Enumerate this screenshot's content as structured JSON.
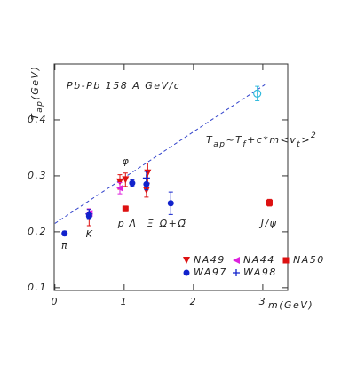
{
  "chart_data": {
    "type": "scatter",
    "title": "Pb-Pb 158 A GeV/c",
    "x_label": "m(GeV)",
    "y_label": [
      {
        "base": "T"
      },
      {
        "sub": "ap"
      },
      {
        "base": "(GeV)"
      }
    ],
    "formula": [
      {
        "base": "T"
      },
      {
        "sub": "ap"
      },
      {
        "base": "~T"
      },
      {
        "sub": "f"
      },
      {
        "base": "+c*m<v"
      },
      {
        "sub": "t"
      },
      {
        "base": ">"
      },
      {
        "sup": "2"
      }
    ],
    "particle_labels": [
      "π",
      "K",
      "p",
      "Λ",
      "Ξ",
      "Ω+Ω̄",
      "J/ψ",
      "φ"
    ],
    "xlim": [
      -0.01,
      3.36
    ],
    "ylim": [
      0.095,
      0.5
    ],
    "xticks": [
      0,
      1,
      2,
      3
    ],
    "yticks": [
      0.1,
      0.2,
      0.3,
      0.4
    ],
    "legend": "lower right",
    "fit": {
      "x": [
        0,
        3.03
      ],
      "y": [
        0.215,
        0.463
      ],
      "color": "#3344cc",
      "dashed": true
    },
    "series": [
      {
        "name": "NA49",
        "color": "#dd1111",
        "marker": "triangle-down",
        "x": [
          0.494,
          0.938,
          1.019,
          1.321,
          1.34
        ],
        "values": [
          0.226,
          0.289,
          0.293,
          0.274,
          0.305
        ],
        "errors": [
          0.015,
          0.013,
          0.012,
          0.012,
          0.018
        ]
      },
      {
        "name": "NA44",
        "color": "#dd22dd",
        "marker": "triangle-left",
        "x": [
          0.494,
          0.938
        ],
        "values": [
          0.233,
          0.278
        ],
        "errors": [
          0.008,
          0.01
        ]
      },
      {
        "name": "NA50",
        "color": "#dd1111",
        "marker": "square",
        "x": [
          1.019,
          3.097
        ],
        "values": [
          0.241,
          0.252
        ],
        "errors": [
          0.005,
          0.006
        ]
      },
      {
        "name": "WA97",
        "color": "#1122cc",
        "marker": "circle",
        "x": [
          0.14,
          0.494,
          1.116,
          1.321,
          1.672
        ],
        "values": [
          0.197,
          0.228,
          0.287,
          0.285,
          0.251
        ],
        "errors": [
          0.004,
          0.006,
          0.006,
          0.01,
          0.02
        ]
      },
      {
        "name": "WA98",
        "color": "#1122cc",
        "marker": "plus",
        "x": [
          0.494,
          1.321
        ],
        "values": [
          0.232,
          0.296
        ],
        "errors": [
          0.008,
          0.012
        ]
      },
      {
        "color": "#33bbdd",
        "marker": "circle-open",
        "x": [
          2.92
        ],
        "values": [
          0.447
        ],
        "errors": [
          0.013
        ]
      }
    ]
  }
}
